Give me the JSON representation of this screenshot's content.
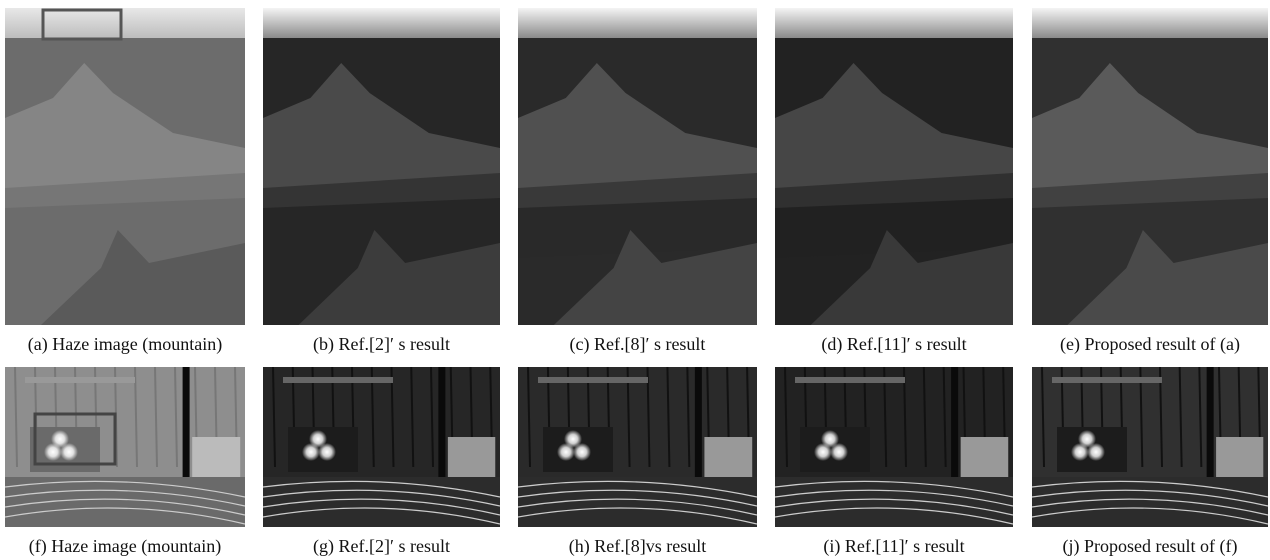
{
  "figure": {
    "panels": [
      {
        "caption": "(a) Haze image (mountain)"
      },
      {
        "caption": "(b) Ref.[2]′ s result"
      },
      {
        "caption": "(c) Ref.[8]′ s result"
      },
      {
        "caption": "(d) Ref.[11]′ s result"
      },
      {
        "caption": "(e) Proposed result of (a)"
      },
      {
        "caption": "(f) Haze image (mountain)"
      },
      {
        "caption": "(g) Ref.[2]′ s result"
      },
      {
        "caption": "(h) Ref.[8]vs result"
      },
      {
        "caption": "(i) Ref.[11]′ s result"
      },
      {
        "caption": "(j) Proposed result of (f)"
      }
    ]
  }
}
